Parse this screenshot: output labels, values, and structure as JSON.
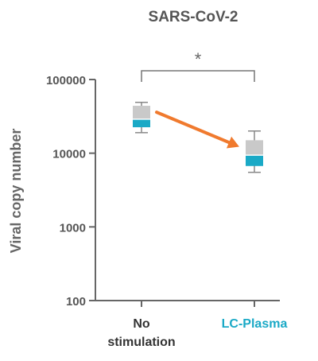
{
  "chart_data": {
    "type": "box",
    "title": "SARS-CoV-2",
    "ylabel": "Viral copy number",
    "xlabel": "",
    "yscale": "log",
    "ylim": [
      100,
      100000
    ],
    "yticks": [
      100,
      1000,
      10000,
      100000
    ],
    "ytick_labels": [
      "100",
      "1000",
      "10000",
      "100000"
    ],
    "grid": false,
    "legend": "none",
    "categories": [
      {
        "label_lines": [
          "No",
          "stimulation"
        ],
        "color": "#333333"
      },
      {
        "label_lines": [
          "LC-Plasma"
        ],
        "color": "#1aa9c6"
      }
    ],
    "boxes": [
      {
        "whisker_low": 19000,
        "q1": 22500,
        "median": 29000,
        "q3": 44000,
        "whisker_high": 49000
      },
      {
        "whisker_low": 5500,
        "q1": 6700,
        "median": 9400,
        "q3": 15000,
        "whisker_high": 20000
      }
    ],
    "colors": {
      "upper_box": "#c9c9c9",
      "lower_box": "#1aa9c6",
      "arrow": "#f07a2e",
      "axis": "#666666",
      "text": "#555555"
    },
    "annotation": {
      "significance": "*",
      "between": [
        0,
        1
      ]
    }
  }
}
